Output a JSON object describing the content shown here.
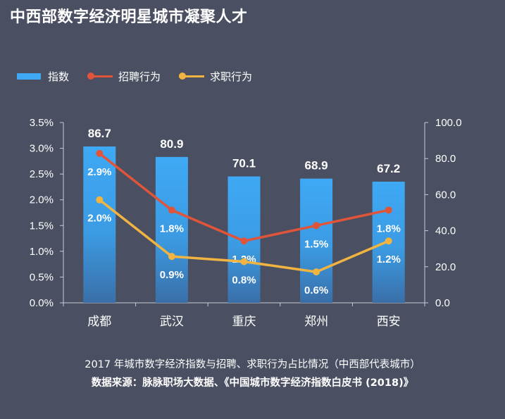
{
  "title": "中西部数字经济明星城市凝聚人才",
  "legend": {
    "bar_label": "指数",
    "line1_label": "招聘行为",
    "line2_label": "求职行为"
  },
  "colors": {
    "bar_top": "#3fa9f5",
    "bar_bottom": "#3a6fa8",
    "line_recruit": "#e0553a",
    "line_job": "#f2b441",
    "axis": "#c9ccd3",
    "text": "#ffffff"
  },
  "chart_data": {
    "type": "bar",
    "categories": [
      "成都",
      "武汉",
      "重庆",
      "郑州",
      "西安"
    ],
    "series": [
      {
        "name": "指数",
        "type": "bar",
        "axis": "right",
        "values": [
          86.7,
          80.9,
          70.1,
          68.9,
          67.2
        ],
        "labels": [
          "86.7",
          "80.9",
          "70.1",
          "68.9",
          "67.2"
        ]
      },
      {
        "name": "招聘行为",
        "type": "line",
        "axis": "left",
        "values": [
          2.9,
          1.8,
          1.2,
          1.5,
          1.8
        ],
        "labels": [
          "2.9%",
          "1.8%",
          "1.2%",
          "1.5%",
          "1.8%"
        ]
      },
      {
        "name": "求职行为",
        "type": "line",
        "axis": "left",
        "values": [
          2.0,
          0.9,
          0.8,
          0.6,
          1.2
        ],
        "labels": [
          "2.0%",
          "0.9%",
          "0.8%",
          "0.6%",
          "1.2%"
        ]
      }
    ],
    "y_left": {
      "min": 0,
      "max": 3.5,
      "ticks": [
        "0.0%",
        "0.5%",
        "1.0%",
        "1.5%",
        "2.0%",
        "2.5%",
        "3.0%",
        "3.5%"
      ]
    },
    "y_right": {
      "min": 0,
      "max": 100,
      "ticks": [
        "0.0",
        "20.0",
        "40.0",
        "60.0",
        "80.0",
        "100.0"
      ]
    },
    "grid": false
  },
  "caption": {
    "line1": "2017 年城市数字经济指数与招聘、求职行为占比情况（中西部代表城市）",
    "line2": "数据来源：脉脉职场大数据、《中国城市数字经济指数白皮书 (2018)》"
  }
}
